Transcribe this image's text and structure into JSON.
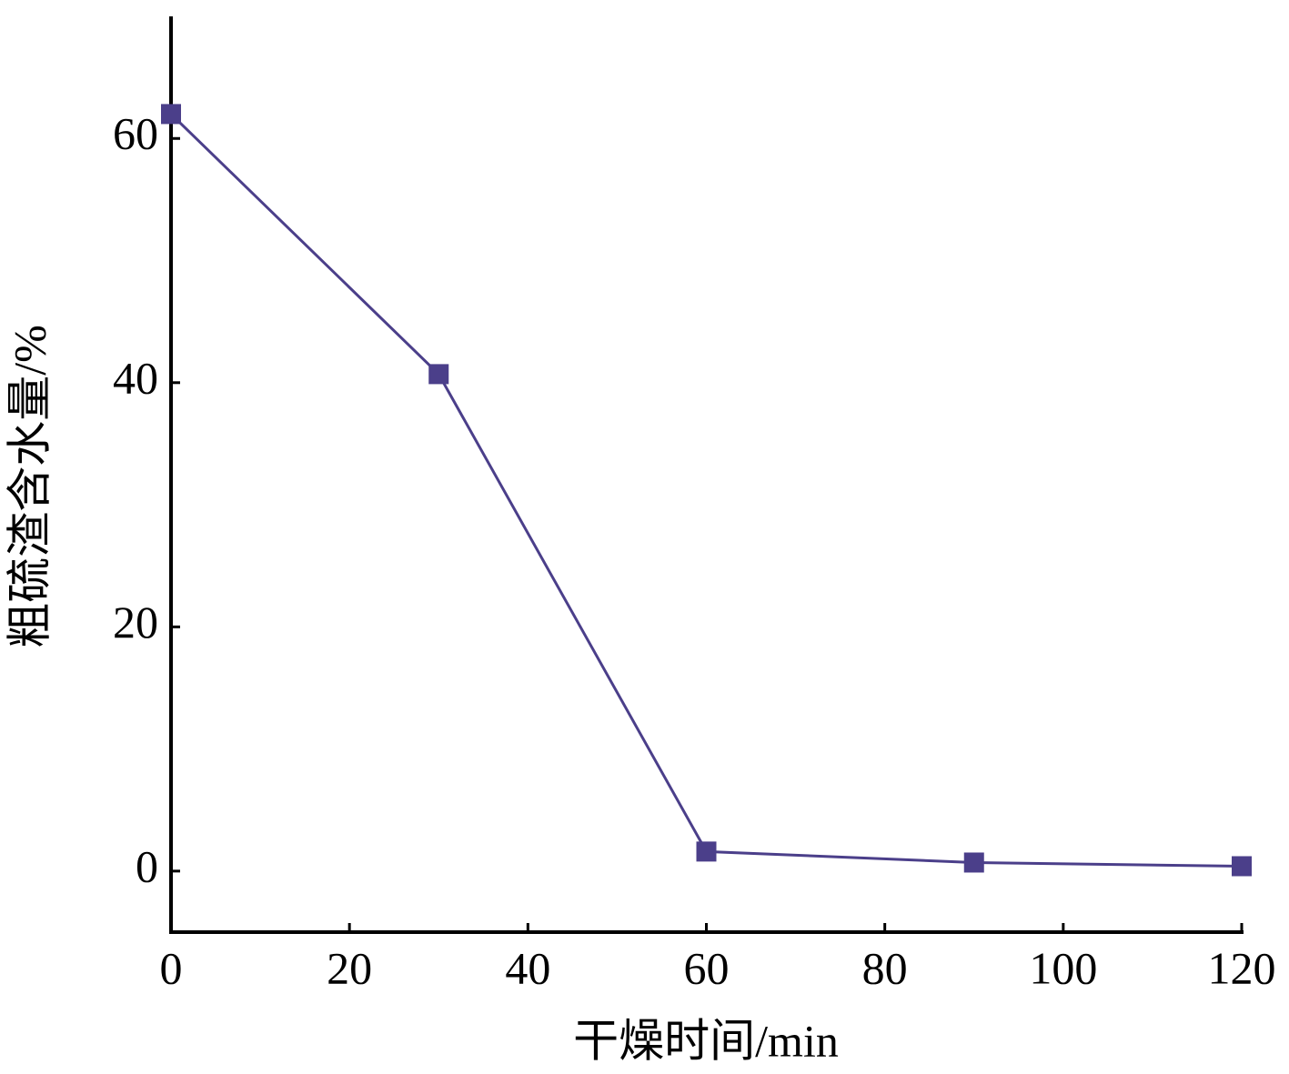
{
  "chart_data": {
    "type": "line",
    "x_label": "干燥时间/min",
    "y_label": "粗硫渣含水量/%",
    "x": [
      0,
      30,
      60,
      90,
      120
    ],
    "series": [
      {
        "color": "#4b3f8a",
        "values": [
          62.0,
          40.7,
          1.6,
          0.7,
          0.4
        ]
      }
    ],
    "xlim": [
      0,
      120
    ],
    "xticks": [
      0,
      20,
      40,
      60,
      80,
      100,
      120
    ],
    "ylim": [
      -5,
      70
    ],
    "yticks": [
      0,
      20,
      40,
      60
    ]
  }
}
